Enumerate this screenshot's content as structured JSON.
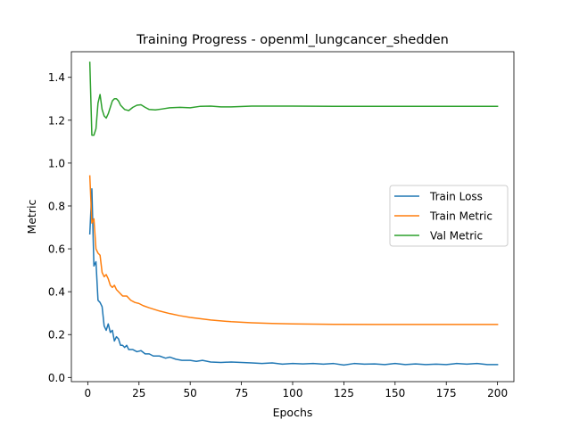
{
  "chart_data": {
    "type": "line",
    "title": "Training Progress - openml_lungcancer_shedden",
    "xlabel": "Epochs",
    "ylabel": "Metric",
    "xlim": [
      -8,
      208
    ],
    "ylim": [
      -0.0195,
      1.5195
    ],
    "xticks": [
      0,
      25,
      50,
      75,
      100,
      125,
      150,
      175,
      200
    ],
    "yticks": [
      0.0,
      0.2,
      0.4,
      0.6,
      0.8,
      1.0,
      1.2,
      1.4
    ],
    "ytick_labels": [
      "0.0",
      "0.2",
      "0.4",
      "0.6",
      "0.8",
      "1.0",
      "1.2",
      "1.4"
    ],
    "grid": false,
    "legend": "center-right",
    "series": [
      {
        "name": "Train Loss",
        "color": "#1f77b4",
        "points": [
          [
            1,
            0.67
          ],
          [
            2,
            0.88
          ],
          [
            3,
            0.52
          ],
          [
            4,
            0.54
          ],
          [
            5,
            0.36
          ],
          [
            6,
            0.35
          ],
          [
            7,
            0.33
          ],
          [
            8,
            0.24
          ],
          [
            9,
            0.22
          ],
          [
            10,
            0.25
          ],
          [
            11,
            0.21
          ],
          [
            12,
            0.22
          ],
          [
            13,
            0.17
          ],
          [
            14,
            0.19
          ],
          [
            15,
            0.18
          ],
          [
            16,
            0.15
          ],
          [
            17,
            0.15
          ],
          [
            18,
            0.14
          ],
          [
            19,
            0.15
          ],
          [
            20,
            0.13
          ],
          [
            22,
            0.13
          ],
          [
            24,
            0.12
          ],
          [
            26,
            0.125
          ],
          [
            28,
            0.11
          ],
          [
            30,
            0.11
          ],
          [
            32,
            0.1
          ],
          [
            35,
            0.1
          ],
          [
            38,
            0.09
          ],
          [
            40,
            0.095
          ],
          [
            43,
            0.085
          ],
          [
            46,
            0.08
          ],
          [
            50,
            0.08
          ],
          [
            53,
            0.075
          ],
          [
            56,
            0.08
          ],
          [
            60,
            0.072
          ],
          [
            65,
            0.07
          ],
          [
            70,
            0.072
          ],
          [
            75,
            0.07
          ],
          [
            80,
            0.068
          ],
          [
            85,
            0.065
          ],
          [
            90,
            0.068
          ],
          [
            95,
            0.062
          ],
          [
            100,
            0.065
          ],
          [
            105,
            0.063
          ],
          [
            110,
            0.065
          ],
          [
            115,
            0.062
          ],
          [
            120,
            0.065
          ],
          [
            125,
            0.058
          ],
          [
            130,
            0.065
          ],
          [
            135,
            0.062
          ],
          [
            140,
            0.063
          ],
          [
            145,
            0.06
          ],
          [
            150,
            0.065
          ],
          [
            155,
            0.06
          ],
          [
            160,
            0.063
          ],
          [
            165,
            0.06
          ],
          [
            170,
            0.062
          ],
          [
            175,
            0.06
          ],
          [
            180,
            0.065
          ],
          [
            185,
            0.062
          ],
          [
            190,
            0.065
          ],
          [
            195,
            0.06
          ],
          [
            200,
            0.06
          ]
        ]
      },
      {
        "name": "Train Metric",
        "color": "#ff7f0e",
        "points": [
          [
            1,
            0.94
          ],
          [
            2,
            0.72
          ],
          [
            3,
            0.74
          ],
          [
            4,
            0.6
          ],
          [
            5,
            0.58
          ],
          [
            6,
            0.57
          ],
          [
            7,
            0.49
          ],
          [
            8,
            0.47
          ],
          [
            9,
            0.48
          ],
          [
            10,
            0.46
          ],
          [
            11,
            0.43
          ],
          [
            12,
            0.42
          ],
          [
            13,
            0.43
          ],
          [
            14,
            0.41
          ],
          [
            15,
            0.4
          ],
          [
            17,
            0.38
          ],
          [
            19,
            0.38
          ],
          [
            21,
            0.36
          ],
          [
            23,
            0.35
          ],
          [
            25,
            0.345
          ],
          [
            27,
            0.335
          ],
          [
            30,
            0.325
          ],
          [
            35,
            0.31
          ],
          [
            40,
            0.298
          ],
          [
            45,
            0.288
          ],
          [
            50,
            0.28
          ],
          [
            60,
            0.268
          ],
          [
            70,
            0.26
          ],
          [
            80,
            0.255
          ],
          [
            90,
            0.252
          ],
          [
            100,
            0.25
          ],
          [
            120,
            0.248
          ],
          [
            140,
            0.247
          ],
          [
            160,
            0.247
          ],
          [
            180,
            0.247
          ],
          [
            200,
            0.247
          ]
        ]
      },
      {
        "name": "Val Metric",
        "color": "#2ca02c",
        "points": [
          [
            1,
            1.47
          ],
          [
            2,
            1.13
          ],
          [
            3,
            1.13
          ],
          [
            4,
            1.16
          ],
          [
            5,
            1.28
          ],
          [
            6,
            1.32
          ],
          [
            7,
            1.25
          ],
          [
            8,
            1.22
          ],
          [
            9,
            1.21
          ],
          [
            10,
            1.23
          ],
          [
            11,
            1.26
          ],
          [
            12,
            1.29
          ],
          [
            13,
            1.3
          ],
          [
            14,
            1.3
          ],
          [
            15,
            1.29
          ],
          [
            16,
            1.27
          ],
          [
            18,
            1.25
          ],
          [
            20,
            1.245
          ],
          [
            22,
            1.26
          ],
          [
            24,
            1.27
          ],
          [
            26,
            1.272
          ],
          [
            28,
            1.26
          ],
          [
            30,
            1.25
          ],
          [
            33,
            1.248
          ],
          [
            36,
            1.252
          ],
          [
            40,
            1.258
          ],
          [
            45,
            1.26
          ],
          [
            50,
            1.258
          ],
          [
            55,
            1.265
          ],
          [
            60,
            1.266
          ],
          [
            65,
            1.262
          ],
          [
            70,
            1.262
          ],
          [
            80,
            1.266
          ],
          [
            90,
            1.266
          ],
          [
            100,
            1.266
          ],
          [
            120,
            1.265
          ],
          [
            140,
            1.265
          ],
          [
            160,
            1.265
          ],
          [
            180,
            1.265
          ],
          [
            200,
            1.265
          ]
        ]
      }
    ]
  }
}
